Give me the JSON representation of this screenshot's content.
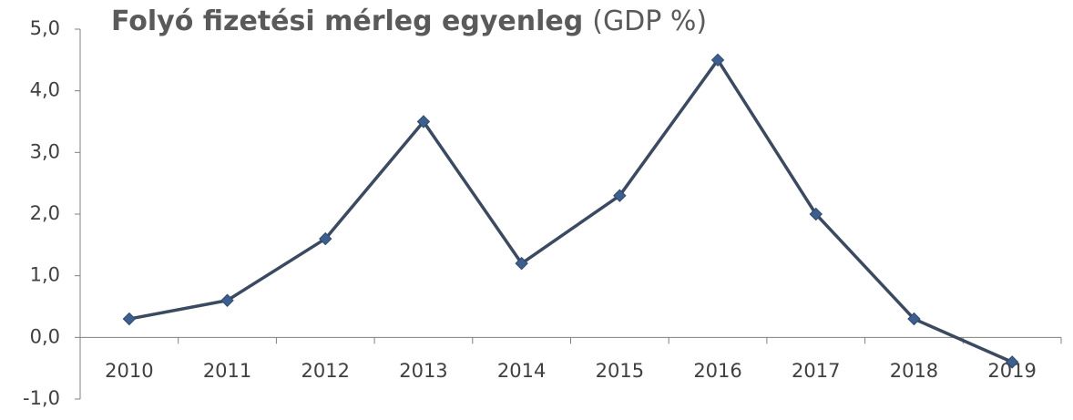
{
  "chart_data": {
    "type": "line",
    "title": "Folyó fizetési mérleg egyenleg",
    "subtitle": "(GDP %)",
    "categories": [
      "2010",
      "2011",
      "2012",
      "2013",
      "2014",
      "2015",
      "2016",
      "2017",
      "2018",
      "2019"
    ],
    "values": [
      0.3,
      0.6,
      1.6,
      3.5,
      1.2,
      2.3,
      4.5,
      2.0,
      0.3,
      -0.4
    ],
    "color": "#3b4a60",
    "marker_color": "#3d5f8d",
    "ylim": [
      -1,
      5
    ],
    "yticks": [
      {
        "value": -1,
        "label": "-1,0"
      },
      {
        "value": 0,
        "label": "0,0"
      },
      {
        "value": 1,
        "label": "1,0"
      },
      {
        "value": 2,
        "label": "2,0"
      },
      {
        "value": 3,
        "label": "3,0"
      },
      {
        "value": 4,
        "label": "4,0"
      },
      {
        "value": 5,
        "label": "5,0"
      }
    ]
  }
}
